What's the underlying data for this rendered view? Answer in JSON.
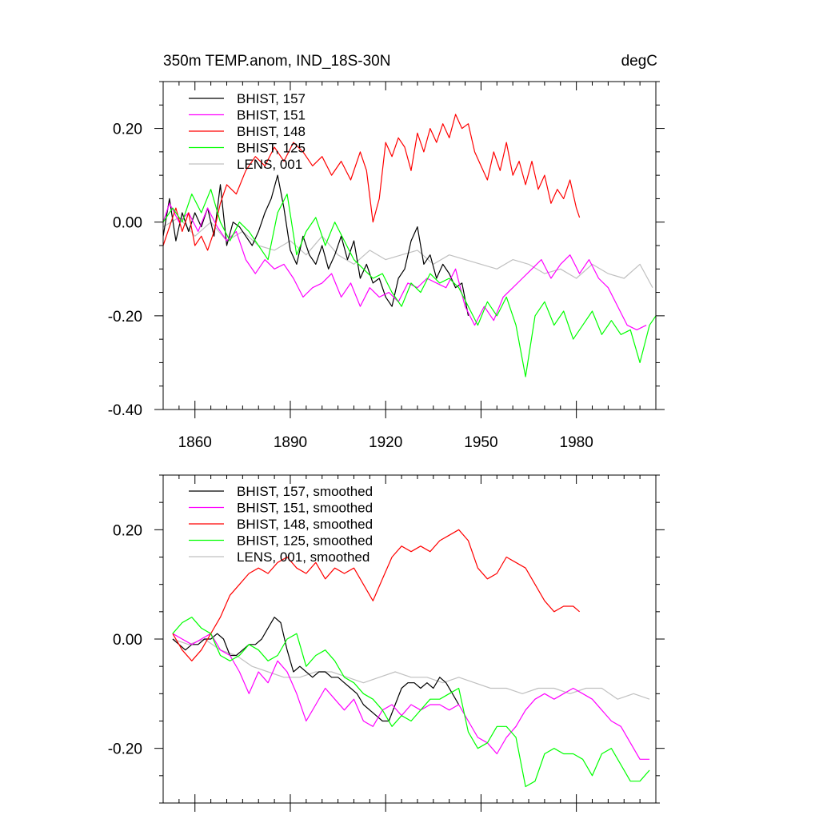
{
  "chart_data": [
    {
      "type": "line",
      "title": "350m TEMP.anom, IND_18S-30N",
      "units": "degC",
      "xlabel": "",
      "ylabel": "",
      "xlim": [
        1850,
        2005
      ],
      "ylim": [
        -0.4,
        0.3
      ],
      "xticks": [
        1860,
        1890,
        1920,
        1950,
        1980
      ],
      "xtick_labels": [
        "1860",
        "1890",
        "1920",
        "1950",
        "1980"
      ],
      "yticks": [
        -0.4,
        -0.2,
        0.0,
        0.2
      ],
      "ytick_labels": [
        "-0.40",
        "-0.20",
        "0.00",
        "0.20"
      ],
      "legend_position": "top-left",
      "grid": false,
      "series": [
        {
          "name": "BHIST, 157",
          "color": "#000000",
          "x": [
            1850,
            1852,
            1854,
            1856,
            1858,
            1860,
            1862,
            1864,
            1866,
            1868,
            1870,
            1872,
            1874,
            1876,
            1878,
            1880,
            1882,
            1884,
            1886,
            1888,
            1890,
            1892,
            1894,
            1896,
            1898,
            1900,
            1902,
            1904,
            1906,
            1908,
            1910,
            1912,
            1914,
            1916,
            1918,
            1920,
            1922,
            1924,
            1926,
            1928,
            1930,
            1932,
            1934,
            1936,
            1938,
            1940,
            1942,
            1944,
            1946
          ],
          "y": [
            -0.03,
            0.05,
            -0.04,
            0.02,
            -0.02,
            0.02,
            -0.01,
            0.03,
            -0.03,
            0.08,
            -0.05,
            0.0,
            -0.01,
            -0.03,
            -0.05,
            -0.02,
            0.02,
            0.05,
            0.1,
            0.03,
            -0.06,
            -0.09,
            -0.03,
            -0.07,
            -0.09,
            -0.05,
            -0.1,
            -0.07,
            -0.03,
            -0.08,
            -0.04,
            -0.12,
            -0.09,
            -0.13,
            -0.12,
            -0.16,
            -0.18,
            -0.12,
            -0.1,
            -0.04,
            -0.01,
            -0.09,
            -0.07,
            -0.12,
            -0.09,
            -0.11,
            -0.14,
            -0.13,
            -0.2
          ]
        },
        {
          "name": "BHIST, 151",
          "color": "#ff00ff",
          "x": [
            1850,
            1852,
            1855,
            1858,
            1861,
            1864,
            1867,
            1870,
            1873,
            1876,
            1879,
            1882,
            1885,
            1888,
            1891,
            1894,
            1897,
            1900,
            1903,
            1906,
            1909,
            1912,
            1915,
            1918,
            1921,
            1924,
            1927,
            1930,
            1933,
            1936,
            1939,
            1942,
            1945,
            1948,
            1951,
            1954,
            1957,
            1960,
            1963,
            1966,
            1969,
            1972,
            1975,
            1978,
            1981,
            1984,
            1987,
            1990,
            1993,
            1996,
            1999,
            2002
          ],
          "y": [
            0.0,
            0.04,
            0.0,
            0.02,
            -0.02,
            0.03,
            -0.01,
            -0.04,
            -0.02,
            -0.08,
            -0.11,
            -0.08,
            -0.1,
            -0.09,
            -0.12,
            -0.16,
            -0.14,
            -0.13,
            -0.11,
            -0.16,
            -0.13,
            -0.18,
            -0.14,
            -0.16,
            -0.15,
            -0.17,
            -0.13,
            -0.14,
            -0.12,
            -0.13,
            -0.14,
            -0.1,
            -0.18,
            -0.22,
            -0.18,
            -0.21,
            -0.16,
            -0.14,
            -0.12,
            -0.1,
            -0.08,
            -0.12,
            -0.09,
            -0.07,
            -0.11,
            -0.08,
            -0.12,
            -0.14,
            -0.18,
            -0.22,
            -0.23,
            -0.22
          ]
        },
        {
          "name": "BHIST, 148",
          "color": "#ff0000",
          "x": [
            1850,
            1852,
            1854,
            1856,
            1858,
            1860,
            1862,
            1864,
            1866,
            1868,
            1870,
            1873,
            1876,
            1879,
            1882,
            1885,
            1888,
            1891,
            1894,
            1897,
            1900,
            1903,
            1906,
            1909,
            1912,
            1914,
            1916,
            1918,
            1920,
            1922,
            1924,
            1926,
            1928,
            1930,
            1932,
            1934,
            1936,
            1938,
            1940,
            1942,
            1944,
            1946,
            1948,
            1950,
            1952,
            1954,
            1956,
            1958,
            1960,
            1962,
            1964,
            1966,
            1968,
            1970,
            1972,
            1974,
            1976,
            1978,
            1980,
            1981
          ],
          "y": [
            -0.05,
            -0.01,
            0.03,
            -0.02,
            0.02,
            -0.05,
            -0.03,
            -0.06,
            -0.02,
            0.04,
            0.08,
            0.06,
            0.11,
            0.14,
            0.12,
            0.16,
            0.13,
            0.17,
            0.15,
            0.12,
            0.14,
            0.1,
            0.13,
            0.09,
            0.15,
            0.11,
            0.0,
            0.05,
            0.17,
            0.14,
            0.18,
            0.16,
            0.11,
            0.19,
            0.15,
            0.2,
            0.17,
            0.21,
            0.18,
            0.23,
            0.2,
            0.21,
            0.15,
            0.12,
            0.09,
            0.15,
            0.11,
            0.17,
            0.1,
            0.13,
            0.08,
            0.13,
            0.07,
            0.1,
            0.04,
            0.07,
            0.05,
            0.09,
            0.03,
            0.01
          ]
        },
        {
          "name": "BHIST, 125",
          "color": "#00ff00",
          "x": [
            1850,
            1853,
            1856,
            1859,
            1862,
            1865,
            1868,
            1871,
            1874,
            1877,
            1880,
            1883,
            1886,
            1889,
            1892,
            1895,
            1898,
            1901,
            1904,
            1907,
            1910,
            1913,
            1916,
            1919,
            1922,
            1925,
            1928,
            1931,
            1934,
            1937,
            1940,
            1943,
            1946,
            1949,
            1952,
            1955,
            1958,
            1961,
            1964,
            1967,
            1970,
            1973,
            1976,
            1979,
            1982,
            1985,
            1988,
            1991,
            1994,
            1997,
            2000,
            2003,
            2005
          ],
          "y": [
            0.0,
            0.03,
            0.0,
            0.06,
            0.02,
            0.07,
            0.0,
            -0.04,
            0.0,
            -0.02,
            -0.05,
            -0.08,
            0.02,
            0.06,
            -0.07,
            -0.02,
            0.01,
            -0.05,
            0.0,
            -0.04,
            -0.08,
            -0.1,
            -0.12,
            -0.11,
            -0.15,
            -0.18,
            -0.13,
            -0.15,
            -0.11,
            -0.13,
            -0.12,
            -0.14,
            -0.18,
            -0.22,
            -0.17,
            -0.2,
            -0.16,
            -0.22,
            -0.33,
            -0.2,
            -0.17,
            -0.22,
            -0.19,
            -0.25,
            -0.22,
            -0.19,
            -0.24,
            -0.21,
            -0.24,
            -0.23,
            -0.3,
            -0.22,
            -0.2
          ]
        },
        {
          "name": "LENS, 001",
          "color": "#c0c0c0",
          "x": [
            1850,
            1855,
            1860,
            1865,
            1870,
            1875,
            1880,
            1885,
            1890,
            1895,
            1900,
            1905,
            1910,
            1915,
            1920,
            1925,
            1930,
            1935,
            1940,
            1945,
            1950,
            1955,
            1960,
            1965,
            1970,
            1975,
            1980,
            1985,
            1990,
            1995,
            2000,
            2004
          ],
          "y": [
            -0.01,
            0.01,
            -0.03,
            0.0,
            -0.04,
            -0.02,
            -0.05,
            -0.06,
            -0.04,
            -0.07,
            -0.03,
            -0.07,
            -0.09,
            -0.06,
            -0.08,
            -0.07,
            -0.06,
            -0.09,
            -0.07,
            -0.08,
            -0.09,
            -0.1,
            -0.08,
            -0.09,
            -0.11,
            -0.1,
            -0.12,
            -0.09,
            -0.11,
            -0.12,
            -0.09,
            -0.14
          ]
        }
      ]
    },
    {
      "type": "line",
      "title": "",
      "units": "",
      "xlabel": "",
      "ylabel": "",
      "xlim": [
        1850,
        2005
      ],
      "ylim": [
        -0.3,
        0.3
      ],
      "xticks": [
        1860,
        1890,
        1920,
        1950,
        1980
      ],
      "xtick_labels": [],
      "yticks": [
        -0.2,
        0.0,
        0.2
      ],
      "ytick_labels": [
        "-0.20",
        "0.00",
        "0.20"
      ],
      "legend_position": "top-left",
      "grid": false,
      "series": [
        {
          "name": "BHIST, 157, smoothed",
          "color": "#000000",
          "x": [
            1853,
            1855,
            1857,
            1859,
            1861,
            1863,
            1865,
            1867,
            1869,
            1871,
            1873,
            1875,
            1877,
            1879,
            1881,
            1883,
            1885,
            1887,
            1889,
            1891,
            1893,
            1895,
            1897,
            1899,
            1901,
            1903,
            1905,
            1907,
            1909,
            1911,
            1913,
            1915,
            1917,
            1919,
            1921,
            1923,
            1925,
            1927,
            1929,
            1931,
            1933,
            1935,
            1937,
            1939,
            1941,
            1943
          ],
          "y": [
            0.0,
            -0.01,
            -0.02,
            -0.01,
            -0.01,
            0.0,
            0.0,
            0.01,
            0.0,
            -0.03,
            -0.03,
            -0.02,
            -0.01,
            -0.01,
            0.0,
            0.02,
            0.04,
            0.03,
            -0.02,
            -0.06,
            -0.05,
            -0.06,
            -0.07,
            -0.06,
            -0.06,
            -0.07,
            -0.07,
            -0.08,
            -0.09,
            -0.1,
            -0.12,
            -0.13,
            -0.14,
            -0.15,
            -0.15,
            -0.12,
            -0.09,
            -0.08,
            -0.08,
            -0.09,
            -0.08,
            -0.09,
            -0.07,
            -0.08,
            -0.1,
            -0.12
          ]
        },
        {
          "name": "BHIST, 151, smoothed",
          "color": "#ff00ff",
          "x": [
            1853,
            1856,
            1859,
            1862,
            1865,
            1868,
            1871,
            1874,
            1877,
            1880,
            1883,
            1886,
            1889,
            1892,
            1895,
            1898,
            1901,
            1904,
            1907,
            1910,
            1913,
            1916,
            1919,
            1922,
            1925,
            1928,
            1931,
            1934,
            1937,
            1940,
            1943,
            1946,
            1949,
            1952,
            1955,
            1958,
            1961,
            1964,
            1967,
            1970,
            1973,
            1976,
            1979,
            1982,
            1985,
            1988,
            1991,
            1994,
            1997,
            2000,
            2003
          ],
          "y": [
            0.01,
            0.0,
            -0.01,
            0.0,
            0.01,
            -0.02,
            -0.03,
            -0.06,
            -0.1,
            -0.06,
            -0.08,
            -0.04,
            -0.06,
            -0.1,
            -0.15,
            -0.12,
            -0.09,
            -0.11,
            -0.13,
            -0.11,
            -0.15,
            -0.16,
            -0.13,
            -0.12,
            -0.14,
            -0.12,
            -0.13,
            -0.12,
            -0.12,
            -0.13,
            -0.12,
            -0.15,
            -0.18,
            -0.19,
            -0.21,
            -0.18,
            -0.16,
            -0.13,
            -0.11,
            -0.1,
            -0.11,
            -0.1,
            -0.09,
            -0.1,
            -0.11,
            -0.13,
            -0.15,
            -0.16,
            -0.19,
            -0.22,
            -0.22
          ]
        },
        {
          "name": "BHIST, 148, smoothed",
          "color": "#ff0000",
          "x": [
            1853,
            1856,
            1859,
            1862,
            1865,
            1868,
            1871,
            1874,
            1877,
            1880,
            1883,
            1886,
            1889,
            1892,
            1895,
            1898,
            1901,
            1904,
            1907,
            1910,
            1913,
            1916,
            1919,
            1922,
            1925,
            1928,
            1931,
            1934,
            1937,
            1940,
            1943,
            1946,
            1949,
            1952,
            1955,
            1958,
            1961,
            1964,
            1967,
            1970,
            1973,
            1976,
            1979,
            1981
          ],
          "y": [
            0.01,
            -0.02,
            -0.04,
            -0.02,
            0.01,
            0.04,
            0.08,
            0.1,
            0.12,
            0.13,
            0.12,
            0.14,
            0.15,
            0.13,
            0.12,
            0.14,
            0.11,
            0.13,
            0.12,
            0.13,
            0.1,
            0.07,
            0.11,
            0.15,
            0.17,
            0.16,
            0.17,
            0.16,
            0.18,
            0.19,
            0.2,
            0.18,
            0.13,
            0.11,
            0.12,
            0.15,
            0.14,
            0.13,
            0.1,
            0.07,
            0.05,
            0.06,
            0.06,
            0.05
          ]
        },
        {
          "name": "BHIST, 125, smoothed",
          "color": "#00ff00",
          "x": [
            1853,
            1856,
            1859,
            1862,
            1865,
            1868,
            1871,
            1874,
            1877,
            1880,
            1883,
            1886,
            1889,
            1892,
            1895,
            1898,
            1901,
            1904,
            1907,
            1910,
            1913,
            1916,
            1919,
            1922,
            1925,
            1928,
            1931,
            1934,
            1937,
            1940,
            1943,
            1946,
            1949,
            1952,
            1955,
            1958,
            1961,
            1964,
            1967,
            1970,
            1973,
            1976,
            1979,
            1982,
            1985,
            1988,
            1991,
            1994,
            1997,
            2000,
            2003
          ],
          "y": [
            0.01,
            0.03,
            0.04,
            0.02,
            0.01,
            -0.03,
            -0.04,
            -0.03,
            -0.01,
            -0.02,
            -0.04,
            -0.03,
            0.0,
            0.01,
            -0.05,
            -0.03,
            -0.02,
            -0.04,
            -0.07,
            -0.08,
            -0.1,
            -0.11,
            -0.13,
            -0.16,
            -0.14,
            -0.15,
            -0.13,
            -0.11,
            -0.11,
            -0.1,
            -0.09,
            -0.17,
            -0.2,
            -0.19,
            -0.16,
            -0.16,
            -0.18,
            -0.27,
            -0.26,
            -0.21,
            -0.2,
            -0.21,
            -0.21,
            -0.22,
            -0.25,
            -0.21,
            -0.2,
            -0.23,
            -0.26,
            -0.26,
            -0.24
          ]
        },
        {
          "name": "LENS, 001, smoothed",
          "color": "#c0c0c0",
          "x": [
            1853,
            1858,
            1863,
            1868,
            1873,
            1878,
            1883,
            1888,
            1893,
            1898,
            1903,
            1908,
            1913,
            1918,
            1923,
            1928,
            1933,
            1938,
            1943,
            1948,
            1953,
            1958,
            1963,
            1968,
            1973,
            1978,
            1983,
            1988,
            1993,
            1998,
            2003
          ],
          "y": [
            0.0,
            -0.01,
            0.0,
            -0.02,
            -0.03,
            -0.05,
            -0.06,
            -0.07,
            -0.07,
            -0.06,
            -0.06,
            -0.07,
            -0.08,
            -0.07,
            -0.06,
            -0.07,
            -0.07,
            -0.08,
            -0.07,
            -0.08,
            -0.09,
            -0.09,
            -0.1,
            -0.09,
            -0.09,
            -0.1,
            -0.09,
            -0.09,
            -0.11,
            -0.1,
            -0.11
          ]
        }
      ]
    }
  ]
}
